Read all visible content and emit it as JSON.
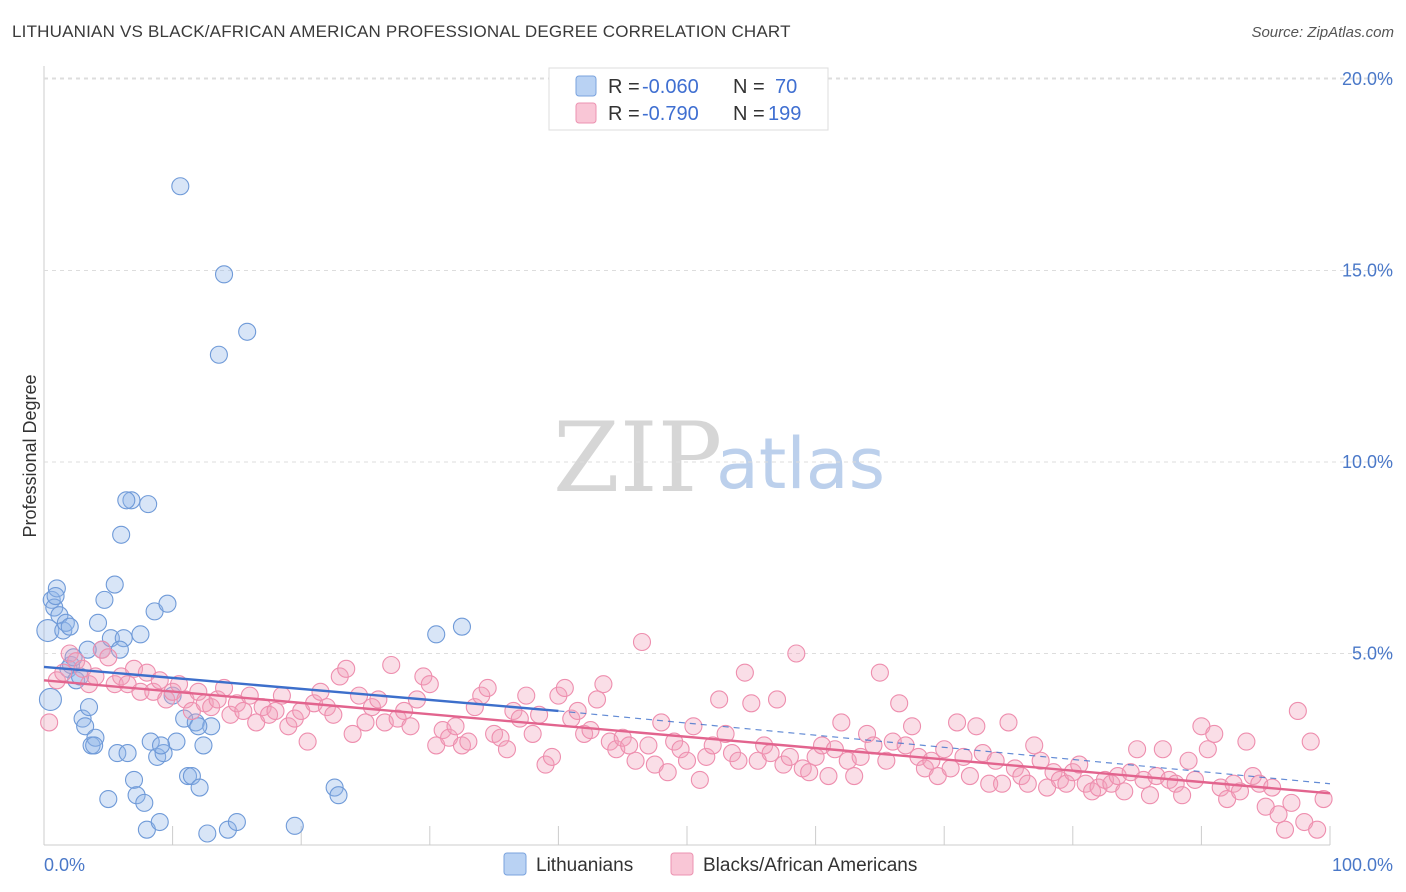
{
  "title": "LITHUANIAN VS BLACK/AFRICAN AMERICAN PROFESSIONAL DEGREE CORRELATION CHART",
  "source": "Source: ZipAtlas.com",
  "watermark": {
    "part1": "ZIP",
    "part2": "atlas"
  },
  "legend": {
    "rows": [
      {
        "r_label": "R = ",
        "r_value": "-0.060",
        "n_label": "N = ",
        "n_value": " 70"
      },
      {
        "r_label": "R = ",
        "r_value": "-0.790",
        "n_label": "N = ",
        "n_value": "199"
      }
    ]
  },
  "bottom_legend": [
    "Lithuanians",
    "Blacks/African Americans"
  ],
  "chart_data": {
    "type": "scatter",
    "title": "LITHUANIAN VS BLACK/AFRICAN AMERICAN PROFESSIONAL DEGREE CORRELATION CHART",
    "xlabel": "",
    "ylabel": "Professional Degree",
    "xlim": [
      0,
      100
    ],
    "ylim": [
      0,
      21
    ],
    "x_tick_labels": [
      "0.0%",
      "100.0%"
    ],
    "y_ticks": [
      5,
      10,
      15,
      20
    ],
    "y_tick_labels": [
      "5.0%",
      "10.0%",
      "15.0%",
      "20.0%"
    ],
    "grid": true,
    "legend_position": "top-center",
    "colors": {
      "lithuanians": "#8fb5e8",
      "lithuanians_line": "#3d6fcb",
      "blacks": "#f2a0bb",
      "blacks_line": "#e2648e"
    },
    "series": [
      {
        "name": "Lithuanians",
        "r": -0.06,
        "n": 70,
        "trend": {
          "x": [
            0,
            40
          ],
          "y": [
            4.65,
            3.5
          ]
        },
        "trend_extension": {
          "x": [
            40,
            100
          ],
          "y": [
            3.5,
            1.6
          ]
        },
        "points": [
          [
            0.3,
            5.6
          ],
          [
            0.5,
            3.8
          ],
          [
            0.6,
            6.4
          ],
          [
            0.8,
            6.2
          ],
          [
            1.0,
            6.7
          ],
          [
            1.2,
            6.0
          ],
          [
            1.5,
            5.6
          ],
          [
            1.7,
            5.8
          ],
          [
            1.9,
            4.6
          ],
          [
            2.1,
            4.7
          ],
          [
            2.3,
            4.9
          ],
          [
            2.5,
            4.3
          ],
          [
            2.8,
            4.4
          ],
          [
            3.0,
            3.3
          ],
          [
            3.2,
            3.1
          ],
          [
            3.5,
            3.6
          ],
          [
            3.7,
            2.6
          ],
          [
            4.0,
            2.8
          ],
          [
            4.2,
            5.8
          ],
          [
            4.5,
            5.1
          ],
          [
            4.7,
            6.4
          ],
          [
            5.0,
            1.2
          ],
          [
            5.2,
            5.4
          ],
          [
            5.5,
            6.8
          ],
          [
            5.7,
            2.4
          ],
          [
            6.0,
            8.1
          ],
          [
            6.2,
            5.4
          ],
          [
            6.5,
            2.4
          ],
          [
            6.8,
            9.0
          ],
          [
            7.0,
            1.7
          ],
          [
            7.2,
            1.3
          ],
          [
            7.5,
            5.5
          ],
          [
            7.8,
            1.1
          ],
          [
            8.0,
            0.4
          ],
          [
            8.3,
            2.7
          ],
          [
            8.6,
            6.1
          ],
          [
            8.8,
            2.3
          ],
          [
            9.0,
            0.6
          ],
          [
            9.3,
            2.4
          ],
          [
            9.6,
            6.3
          ],
          [
            10.0,
            3.9
          ],
          [
            10.3,
            2.7
          ],
          [
            10.6,
            17.2
          ],
          [
            10.9,
            3.3
          ],
          [
            11.2,
            1.8
          ],
          [
            11.5,
            1.8
          ],
          [
            11.8,
            3.2
          ],
          [
            12.1,
            1.5
          ],
          [
            12.4,
            2.6
          ],
          [
            12.7,
            0.3
          ],
          [
            13.0,
            3.1
          ],
          [
            13.6,
            12.8
          ],
          [
            14.0,
            14.9
          ],
          [
            14.3,
            0.4
          ],
          [
            15.0,
            0.6
          ],
          [
            15.8,
            13.4
          ],
          [
            19.5,
            0.5
          ],
          [
            22.6,
            1.5
          ],
          [
            22.9,
            1.3
          ],
          [
            30.5,
            5.5
          ],
          [
            32.5,
            5.7
          ],
          [
            0.9,
            6.5
          ],
          [
            2.0,
            5.7
          ],
          [
            3.4,
            5.1
          ],
          [
            8.1,
            8.9
          ],
          [
            12.0,
            3.1
          ],
          [
            6.4,
            9.0
          ],
          [
            5.9,
            5.1
          ],
          [
            9.1,
            2.6
          ],
          [
            3.9,
            2.6
          ]
        ]
      },
      {
        "name": "Blacks/African Americans",
        "r": -0.79,
        "n": 199,
        "trend": {
          "x": [
            0,
            100
          ],
          "y": [
            4.3,
            1.35
          ]
        },
        "points": [
          [
            0.4,
            3.2
          ],
          [
            1.0,
            4.3
          ],
          [
            1.5,
            4.5
          ],
          [
            2.0,
            5.0
          ],
          [
            2.5,
            4.8
          ],
          [
            3.0,
            4.6
          ],
          [
            3.5,
            4.2
          ],
          [
            4.0,
            4.4
          ],
          [
            4.5,
            5.1
          ],
          [
            5.0,
            4.9
          ],
          [
            5.5,
            4.2
          ],
          [
            6.0,
            4.4
          ],
          [
            6.5,
            4.2
          ],
          [
            7.0,
            4.6
          ],
          [
            7.5,
            4.0
          ],
          [
            8.0,
            4.5
          ],
          [
            8.5,
            4.0
          ],
          [
            9.0,
            4.3
          ],
          [
            9.5,
            3.8
          ],
          [
            10.0,
            4.0
          ],
          [
            10.5,
            4.2
          ],
          [
            11.0,
            3.8
          ],
          [
            11.5,
            3.5
          ],
          [
            12.0,
            4.0
          ],
          [
            12.5,
            3.7
          ],
          [
            13.0,
            3.6
          ],
          [
            13.5,
            3.8
          ],
          [
            14.0,
            4.1
          ],
          [
            14.5,
            3.4
          ],
          [
            15.0,
            3.7
          ],
          [
            15.5,
            3.5
          ],
          [
            16.0,
            3.9
          ],
          [
            16.5,
            3.2
          ],
          [
            17.0,
            3.6
          ],
          [
            17.5,
            3.4
          ],
          [
            18.0,
            3.5
          ],
          [
            18.5,
            3.9
          ],
          [
            19.0,
            3.1
          ],
          [
            19.5,
            3.3
          ],
          [
            20.0,
            3.5
          ],
          [
            20.5,
            2.7
          ],
          [
            21.0,
            3.7
          ],
          [
            21.5,
            4.0
          ],
          [
            22.0,
            3.6
          ],
          [
            22.5,
            3.4
          ],
          [
            23.0,
            4.4
          ],
          [
            23.5,
            4.6
          ],
          [
            24.0,
            2.9
          ],
          [
            24.5,
            3.9
          ],
          [
            25.0,
            3.2
          ],
          [
            25.5,
            3.6
          ],
          [
            26.0,
            3.8
          ],
          [
            26.5,
            3.2
          ],
          [
            27.0,
            4.7
          ],
          [
            27.5,
            3.3
          ],
          [
            28.0,
            3.5
          ],
          [
            28.5,
            3.1
          ],
          [
            29.0,
            3.8
          ],
          [
            29.5,
            4.4
          ],
          [
            30.0,
            4.2
          ],
          [
            30.5,
            2.6
          ],
          [
            31.0,
            3.0
          ],
          [
            31.5,
            2.8
          ],
          [
            32.0,
            3.1
          ],
          [
            32.5,
            2.6
          ],
          [
            33.0,
            2.7
          ],
          [
            33.5,
            3.6
          ],
          [
            34.0,
            3.9
          ],
          [
            34.5,
            4.1
          ],
          [
            35.0,
            2.9
          ],
          [
            35.5,
            2.8
          ],
          [
            36.0,
            2.5
          ],
          [
            36.5,
            3.5
          ],
          [
            37.0,
            3.3
          ],
          [
            37.5,
            3.9
          ],
          [
            38.0,
            2.9
          ],
          [
            38.5,
            3.4
          ],
          [
            39.0,
            2.1
          ],
          [
            39.5,
            2.3
          ],
          [
            40.0,
            3.9
          ],
          [
            40.5,
            4.1
          ],
          [
            41.0,
            3.3
          ],
          [
            41.5,
            3.5
          ],
          [
            42.0,
            2.9
          ],
          [
            42.5,
            3.0
          ],
          [
            43.0,
            3.8
          ],
          [
            43.5,
            4.2
          ],
          [
            44.0,
            2.7
          ],
          [
            44.5,
            2.5
          ],
          [
            45.0,
            2.8
          ],
          [
            45.5,
            2.6
          ],
          [
            46.0,
            2.2
          ],
          [
            46.5,
            5.3
          ],
          [
            47.0,
            2.6
          ],
          [
            47.5,
            2.1
          ],
          [
            48.0,
            3.2
          ],
          [
            48.5,
            1.9
          ],
          [
            49.0,
            2.7
          ],
          [
            49.5,
            2.5
          ],
          [
            50.0,
            2.2
          ],
          [
            50.5,
            3.1
          ],
          [
            51.0,
            1.7
          ],
          [
            51.5,
            2.3
          ],
          [
            52.0,
            2.6
          ],
          [
            52.5,
            3.8
          ],
          [
            53.0,
            2.9
          ],
          [
            53.5,
            2.4
          ],
          [
            54.0,
            2.2
          ],
          [
            54.5,
            4.5
          ],
          [
            55.0,
            3.7
          ],
          [
            55.5,
            2.2
          ],
          [
            56.0,
            2.6
          ],
          [
            56.5,
            2.4
          ],
          [
            57.0,
            3.8
          ],
          [
            57.5,
            2.1
          ],
          [
            58.0,
            2.3
          ],
          [
            58.5,
            5.0
          ],
          [
            59.0,
            2.0
          ],
          [
            59.5,
            1.9
          ],
          [
            60.0,
            2.3
          ],
          [
            60.5,
            2.6
          ],
          [
            61.0,
            1.8
          ],
          [
            61.5,
            2.5
          ],
          [
            62.0,
            3.2
          ],
          [
            62.5,
            2.2
          ],
          [
            63.0,
            1.8
          ],
          [
            63.5,
            2.3
          ],
          [
            64.0,
            2.9
          ],
          [
            64.5,
            2.6
          ],
          [
            65.0,
            4.5
          ],
          [
            65.5,
            2.2
          ],
          [
            66.0,
            2.7
          ],
          [
            66.5,
            3.7
          ],
          [
            67.0,
            2.6
          ],
          [
            67.5,
            3.1
          ],
          [
            68.0,
            2.3
          ],
          [
            68.5,
            2.0
          ],
          [
            69.0,
            2.2
          ],
          [
            69.5,
            1.8
          ],
          [
            70.0,
            2.5
          ],
          [
            70.5,
            2.0
          ],
          [
            71.0,
            3.2
          ],
          [
            71.5,
            2.3
          ],
          [
            72.0,
            1.8
          ],
          [
            72.5,
            3.1
          ],
          [
            73.0,
            2.4
          ],
          [
            73.5,
            1.6
          ],
          [
            74.0,
            2.2
          ],
          [
            74.5,
            1.6
          ],
          [
            75.0,
            3.2
          ],
          [
            75.5,
            2.0
          ],
          [
            76.0,
            1.8
          ],
          [
            76.5,
            1.6
          ],
          [
            77.0,
            2.6
          ],
          [
            77.5,
            2.2
          ],
          [
            78.0,
            1.5
          ],
          [
            78.5,
            1.9
          ],
          [
            79.0,
            1.7
          ],
          [
            79.5,
            1.6
          ],
          [
            80.0,
            1.9
          ],
          [
            80.5,
            2.1
          ],
          [
            81.0,
            1.6
          ],
          [
            81.5,
            1.4
          ],
          [
            82.0,
            1.5
          ],
          [
            82.5,
            1.7
          ],
          [
            83.0,
            1.6
          ],
          [
            83.5,
            1.8
          ],
          [
            84.0,
            1.4
          ],
          [
            84.5,
            1.9
          ],
          [
            85.0,
            2.5
          ],
          [
            85.5,
            1.7
          ],
          [
            86.0,
            1.3
          ],
          [
            86.5,
            1.8
          ],
          [
            87.0,
            2.5
          ],
          [
            87.5,
            1.7
          ],
          [
            88.0,
            1.6
          ],
          [
            88.5,
            1.3
          ],
          [
            89.0,
            2.2
          ],
          [
            89.5,
            1.7
          ],
          [
            90.0,
            3.1
          ],
          [
            90.5,
            2.5
          ],
          [
            91.0,
            2.9
          ],
          [
            91.5,
            1.5
          ],
          [
            92.0,
            1.2
          ],
          [
            92.5,
            1.6
          ],
          [
            93.0,
            1.4
          ],
          [
            93.5,
            2.7
          ],
          [
            94.0,
            1.8
          ],
          [
            94.5,
            1.6
          ],
          [
            95.0,
            1.0
          ],
          [
            95.5,
            1.5
          ],
          [
            96.0,
            0.8
          ],
          [
            96.5,
            0.4
          ],
          [
            97.0,
            1.1
          ],
          [
            97.5,
            3.5
          ],
          [
            98.0,
            0.6
          ],
          [
            98.5,
            2.7
          ],
          [
            99.0,
            0.4
          ],
          [
            99.5,
            1.2
          ]
        ]
      }
    ]
  }
}
